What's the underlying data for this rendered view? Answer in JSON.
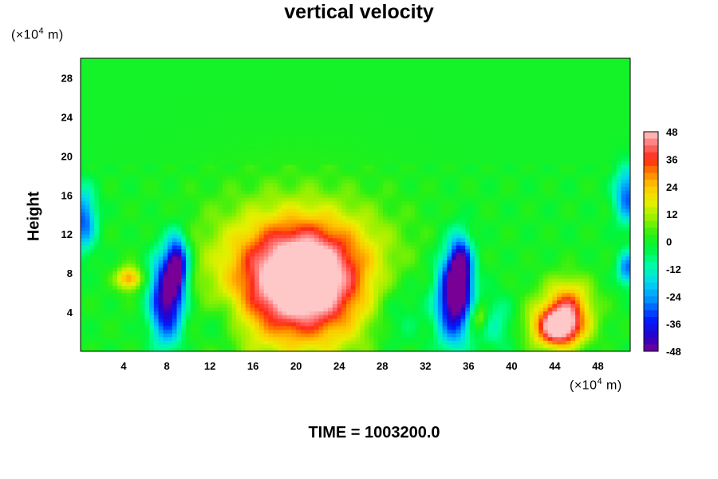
{
  "chart_data": {
    "type": "heatmap",
    "title": "vertical velocity",
    "ylabel": "Height",
    "xlabel": "",
    "y_unit": {
      "prefix": "(×10",
      "exp": "4",
      "suffix": " m)"
    },
    "x_unit": {
      "prefix": "(×10",
      "exp": "4",
      "suffix": " m)"
    },
    "xlim": [
      0,
      51
    ],
    "ylim": [
      0,
      30
    ],
    "x_ticks": [
      4,
      8,
      12,
      16,
      20,
      24,
      28,
      32,
      36,
      40,
      44,
      48
    ],
    "y_ticks": [
      4,
      8,
      12,
      16,
      20,
      24,
      28
    ],
    "colorbar": {
      "min": -48,
      "max": 48,
      "ticks": [
        48,
        36,
        24,
        12,
        0,
        -12,
        -24,
        -36,
        -48
      ]
    },
    "features": [
      {
        "x": 20.5,
        "y": 6.5,
        "sx": 3.8,
        "sy": 3.6,
        "value": 45
      },
      {
        "x": 20.5,
        "y": 10.5,
        "sx": 4.5,
        "sy": 3.0,
        "value": 18
      },
      {
        "x": 20.0,
        "y": 7.0,
        "sx": 7.0,
        "sy": 6.5,
        "value": 14
      },
      {
        "x": 44.3,
        "y": 2.5,
        "sx": 1.5,
        "sy": 1.4,
        "value": 46
      },
      {
        "x": 45.3,
        "y": 5.0,
        "sx": 1.4,
        "sy": 1.8,
        "value": 22
      },
      {
        "x": 44.5,
        "y": 3.5,
        "sx": 2.5,
        "sy": 2.5,
        "value": 10
      },
      {
        "x": 8.0,
        "y": 5.5,
        "sx": 1.1,
        "sy": 3.2,
        "value": -52
      },
      {
        "x": 9.0,
        "y": 9.0,
        "sx": 0.7,
        "sy": 2.0,
        "value": -40
      },
      {
        "x": 34.6,
        "y": 5.5,
        "sx": 1.1,
        "sy": 3.2,
        "value": -52
      },
      {
        "x": 35.3,
        "y": 8.5,
        "sx": 0.7,
        "sy": 2.2,
        "value": -40
      },
      {
        "x": 0.3,
        "y": 13.5,
        "sx": 0.8,
        "sy": 2.2,
        "value": -30
      },
      {
        "x": 50.7,
        "y": 16.0,
        "sx": 0.8,
        "sy": 2.0,
        "value": -30
      },
      {
        "x": 50.7,
        "y": 8.5,
        "sx": 0.6,
        "sy": 1.2,
        "value": -28
      },
      {
        "x": 4.5,
        "y": 7.5,
        "sx": 0.8,
        "sy": 0.8,
        "value": 28
      },
      {
        "x": 13.0,
        "y": 3.0,
        "sx": 1.5,
        "sy": 2.0,
        "value": -10
      },
      {
        "x": 29.5,
        "y": 4.0,
        "sx": 2.0,
        "sy": 3.0,
        "value": -10
      },
      {
        "x": 38.5,
        "y": 3.0,
        "sx": 1.2,
        "sy": 2.0,
        "value": -12
      },
      {
        "x": 37.0,
        "y": 3.5,
        "sx": 0.6,
        "sy": 1.0,
        "value": 16
      }
    ],
    "grid": false
  },
  "footer": {
    "time_text": "TIME = 1003200.0"
  }
}
